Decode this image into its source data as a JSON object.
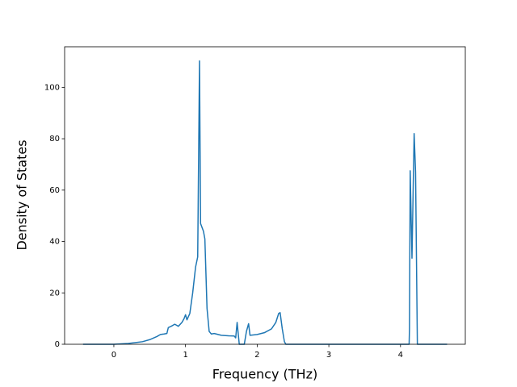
{
  "chart_data": {
    "type": "line",
    "xlabel": "Frequency (THz)",
    "ylabel": "Density of States",
    "x": [
      -0.43,
      0,
      0.2,
      0.4,
      0.5,
      0.6,
      0.65,
      0.7,
      0.74,
      0.76,
      0.8,
      0.85,
      0.9,
      0.95,
      0.98,
      1.0,
      1.02,
      1.06,
      1.1,
      1.14,
      1.17,
      1.195,
      1.21,
      1.25,
      1.27,
      1.3,
      1.33,
      1.36,
      1.4,
      1.5,
      1.6,
      1.68,
      1.7,
      1.72,
      1.75,
      1.82,
      1.85,
      1.88,
      1.9,
      2.0,
      2.1,
      2.2,
      2.26,
      2.3,
      2.32,
      2.35,
      2.38,
      2.4,
      3.9,
      4.12,
      4.125,
      4.135,
      4.16,
      4.19,
      4.21,
      4.235,
      4.65
    ],
    "series": [
      {
        "color": "#1f77b4",
        "values": [
          0,
          0,
          0.3,
          1,
          1.8,
          3,
          3.8,
          4,
          4.2,
          6.5,
          7,
          7.8,
          7,
          8.5,
          10,
          11.5,
          9.5,
          12,
          20,
          30,
          34,
          110.3,
          47,
          44,
          41,
          14,
          5,
          4,
          4.2,
          3.5,
          3.3,
          3.2,
          2.5,
          8.5,
          0,
          0,
          5,
          8,
          3.5,
          3.8,
          4.5,
          6,
          8.5,
          12,
          12.3,
          6,
          1,
          0,
          0,
          0,
          6,
          67.5,
          33.5,
          82,
          67,
          0,
          0
        ]
      }
    ],
    "xlim": [
      -0.687,
      4.904
    ],
    "ylim": [
      0,
      115.8
    ],
    "xticks": [
      0,
      1,
      2,
      3,
      4
    ],
    "yticks": [
      0,
      20,
      40,
      60,
      80,
      100
    ]
  }
}
